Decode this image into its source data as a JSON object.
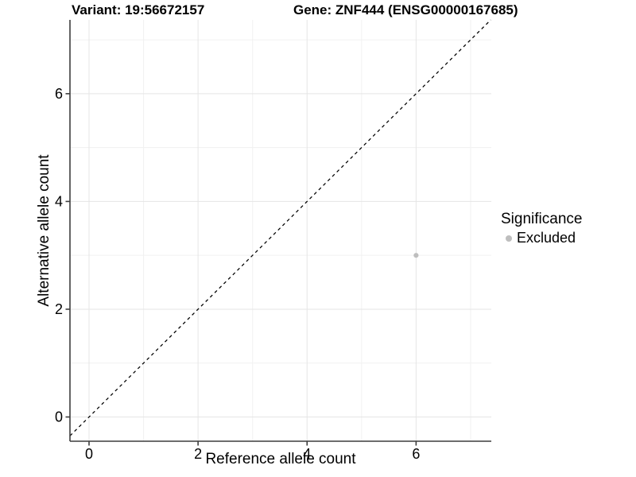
{
  "chart_data": {
    "type": "scatter",
    "titles": [
      "Variant: 19:56672157",
      "Gene: ZNF444 (ENSG00000167685)"
    ],
    "xlabel": "Reference allele count",
    "ylabel": "Alternative allele count",
    "xlim": [
      -0.35,
      7.38
    ],
    "ylim": [
      -0.45,
      7.37
    ],
    "x_ticks": [
      0,
      2,
      4,
      6
    ],
    "y_ticks": [
      0,
      2,
      4,
      6
    ],
    "x_minor": [
      1,
      3,
      5,
      7
    ],
    "y_minor": [
      1,
      3,
      5,
      7
    ],
    "grid": "major+minor",
    "series": [
      {
        "name": "Excluded",
        "color": "#bebebe",
        "points": [
          {
            "x": 6,
            "y": 3
          }
        ]
      }
    ],
    "reference_line": {
      "kind": "identity",
      "slope": 1,
      "intercept": 0,
      "style": "dashed",
      "color": "#000000"
    },
    "legend": {
      "title": "Significance",
      "position": "right",
      "entries": [
        {
          "label": "Excluded",
          "color": "#bebebe"
        }
      ]
    }
  },
  "colors": {
    "background": "#ffffff",
    "grid_major": "#e5e5e5",
    "grid_minor": "#f1f1f1",
    "axis_line": "#3d3d3d",
    "tick": "#3d3d3d",
    "text": "#000000",
    "point": "#bebebe"
  }
}
